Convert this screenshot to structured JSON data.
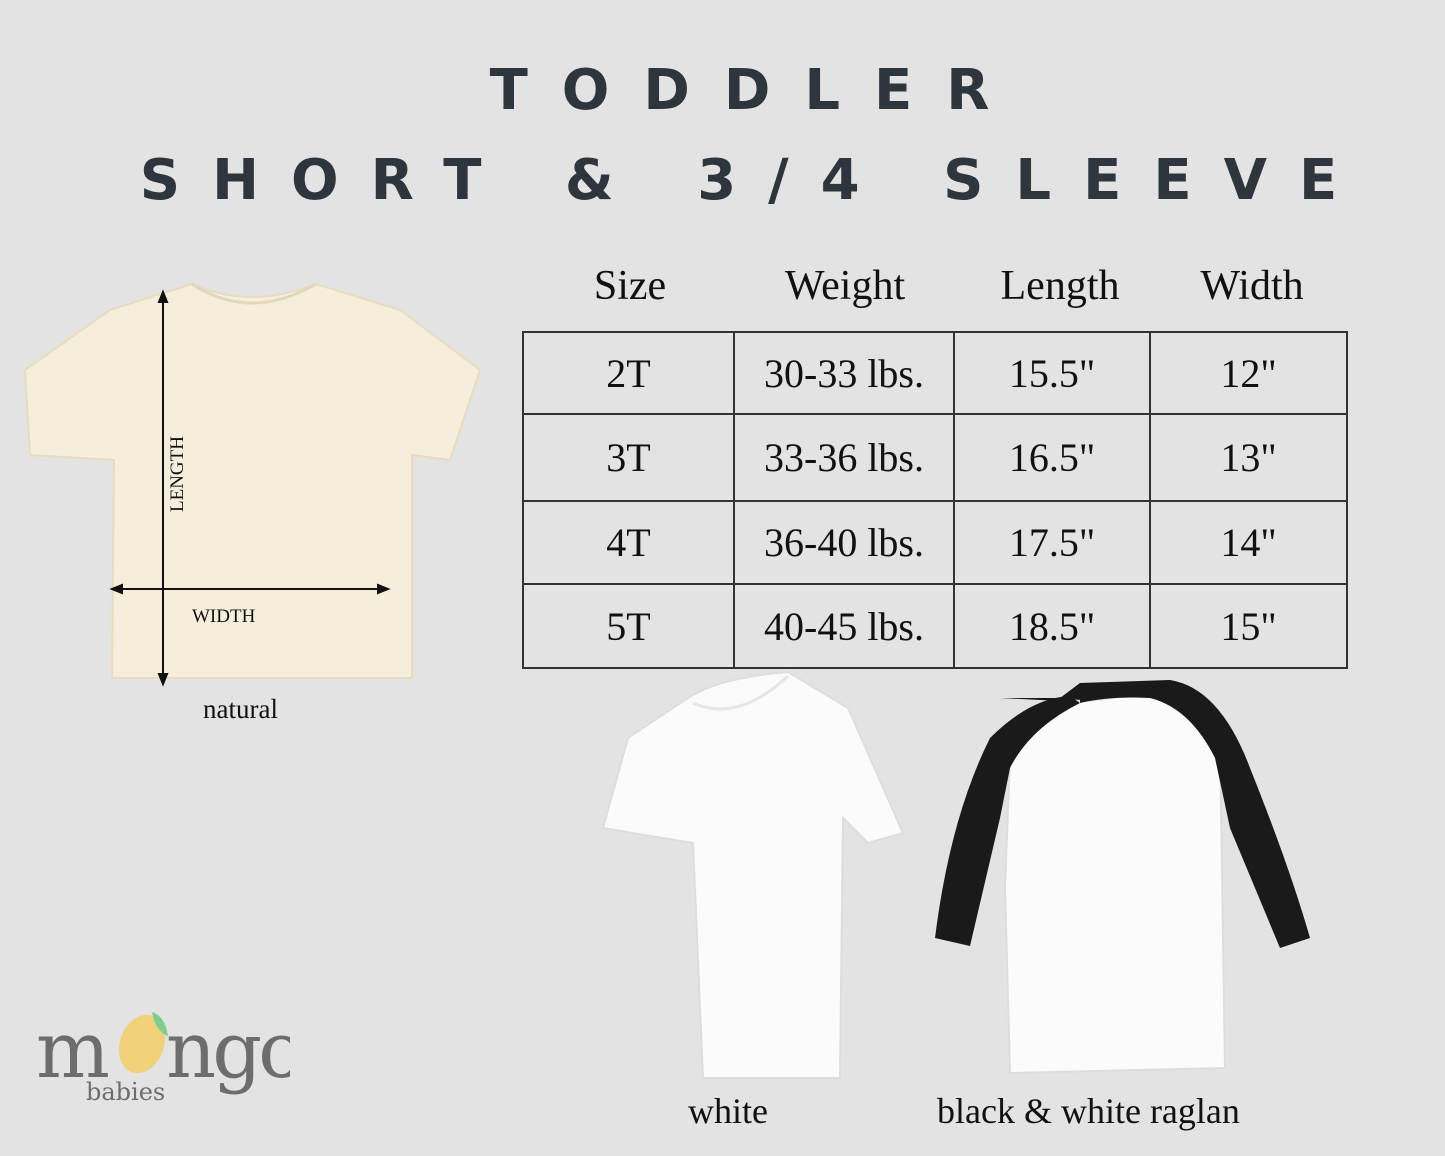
{
  "title": {
    "line1": "TODDLER",
    "line2": "SHORT & 3/4 SLEEVE"
  },
  "table": {
    "headers": [
      "Size",
      "Weight",
      "Length",
      "Width"
    ],
    "rows": [
      [
        "2T",
        "30-33 lbs.",
        "15.5\"",
        "12\""
      ],
      [
        "3T",
        "33-36 lbs.",
        "16.5\"",
        "13\""
      ],
      [
        "4T",
        "36-40 lbs.",
        "17.5\"",
        "14\""
      ],
      [
        "5T",
        "40-45 lbs.",
        "18.5\"",
        "15\""
      ]
    ]
  },
  "diagram": {
    "length_label": "LENGTH",
    "width_label": "WIDTH"
  },
  "products": [
    {
      "caption": "natural",
      "color": "#f5eedb"
    },
    {
      "caption": "white",
      "color": "#fbfbfb"
    },
    {
      "caption": "black & white raglan",
      "color": "#1a1a1a"
    }
  ],
  "logo": {
    "word": "mongo",
    "sub": "babies",
    "mango_color": "#f1d27a",
    "leaf_color": "#7ccf8f",
    "text_color": "#6d6d6d"
  }
}
